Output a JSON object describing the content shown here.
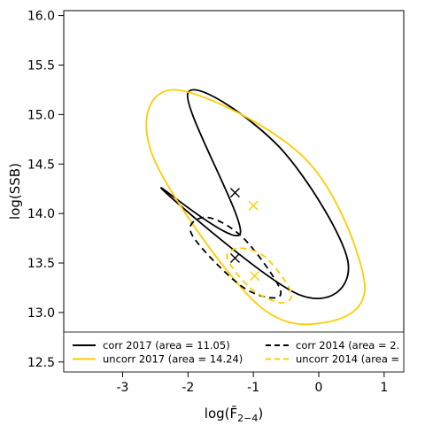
{
  "chart_data": {
    "type": "scatter",
    "title": "",
    "xlabel": "log(F̄",
    "xlabel_sub": "2−4",
    "xlabel_close": ")",
    "ylabel": "log(SSB)",
    "xlim": [
      -3.9,
      1.3
    ],
    "ylim": [
      12.4,
      16.05
    ],
    "xticks": [
      "-3",
      "-2",
      "-1",
      "0",
      "1"
    ],
    "xtick_values": [
      -3,
      -2,
      -1,
      0,
      1
    ],
    "yticks": [
      "12.5",
      "13.0",
      "13.5",
      "14.0",
      "14.5",
      "15.0",
      "15.5",
      "16.0"
    ],
    "ytick_values": [
      12.5,
      13.0,
      13.5,
      14.0,
      14.5,
      15.0,
      15.5,
      16.0
    ],
    "grid": false,
    "legend_placement": "bottom",
    "colors": {
      "corr": "#000000",
      "uncorr": "#FFCC00"
    },
    "series": [
      {
        "name": "corr 2017 (area = 11.05)",
        "color": "#000000",
        "dash": "solid",
        "center": [
          -1.28,
          14.21
        ],
        "ellipse": {
          "x": [
            -2.0,
            -0.6,
            0.45,
            -0.3,
            -2.4,
            -1.2
          ],
          "y": [
            15.22,
            14.67,
            13.5,
            13.18,
            14.25,
            13.8
          ]
        }
      },
      {
        "name": "uncorr 2017 (area = 14.24)",
        "color": "#FFCC00",
        "dash": "solid",
        "center": [
          -1.0,
          14.08
        ],
        "ellipse": {
          "x": [
            -2.2,
            -0.2,
            0.7,
            0.1,
            -1.0,
            -2.55
          ],
          "y": [
            15.25,
            14.55,
            13.3,
            12.9,
            13.12,
            14.6
          ]
        }
      },
      {
        "name": "corr 2014 (area = 2.",
        "color": "#000000",
        "dash": "dashed",
        "center": [
          -1.28,
          13.55
        ],
        "ellipse": {
          "x": [
            -1.7,
            -1.15,
            -0.6,
            -0.75,
            -1.25,
            -1.95
          ],
          "y": [
            13.96,
            13.75,
            13.25,
            13.15,
            13.3,
            13.8
          ]
        }
      },
      {
        "name": "uncorr 2014 (area =",
        "color": "#FFCC00",
        "dash": "dashed",
        "center": [
          -0.98,
          13.37
        ],
        "ellipse": {
          "x": [
            -1.2,
            -0.8,
            -0.42,
            -0.6,
            -1.05,
            -1.4
          ],
          "y": [
            13.65,
            13.55,
            13.2,
            13.1,
            13.25,
            13.55
          ]
        }
      }
    ],
    "legend": [
      {
        "label": "corr 2017 (area = 11.05)",
        "color": "#000000",
        "dash": "solid"
      },
      {
        "label": "uncorr 2017 (area = 14.24)",
        "color": "#FFCC00",
        "dash": "solid"
      },
      {
        "label": "corr 2014 (area = 2.",
        "color": "#000000",
        "dash": "dashed"
      },
      {
        "label": "uncorr 2014 (area =",
        "color": "#FFCC00",
        "dash": "dashed"
      }
    ]
  }
}
